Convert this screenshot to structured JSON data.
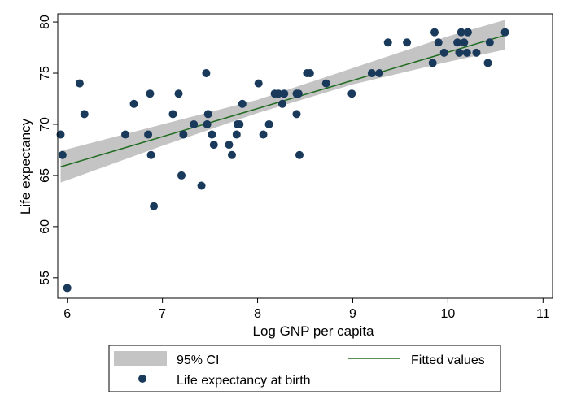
{
  "chart_data": {
    "type": "scatter",
    "title": "",
    "xlabel": "Log GNP per capita",
    "ylabel": "Life expectancy",
    "xlim": [
      5.9,
      11.1
    ],
    "ylim": [
      53,
      80.8
    ],
    "xticks": [
      6,
      7,
      8,
      9,
      10,
      11
    ],
    "yticks": [
      55,
      60,
      65,
      70,
      75,
      80
    ],
    "grid": false,
    "legend_position": "bottom",
    "series": [
      {
        "name": "Life expectancy at birth",
        "type": "scatter",
        "color": "#1a3a5c",
        "points": [
          [
            5.93,
            69
          ],
          [
            5.95,
            67
          ],
          [
            6.0,
            54
          ],
          [
            6.13,
            74
          ],
          [
            6.18,
            71
          ],
          [
            6.61,
            69
          ],
          [
            6.7,
            72
          ],
          [
            6.85,
            69
          ],
          [
            6.87,
            73
          ],
          [
            6.88,
            67
          ],
          [
            6.91,
            62
          ],
          [
            7.11,
            71
          ],
          [
            7.17,
            73
          ],
          [
            7.2,
            65
          ],
          [
            7.22,
            69
          ],
          [
            7.33,
            70
          ],
          [
            7.41,
            64
          ],
          [
            7.46,
            75
          ],
          [
            7.47,
            70
          ],
          [
            7.48,
            71
          ],
          [
            7.52,
            69
          ],
          [
            7.54,
            68
          ],
          [
            7.7,
            68
          ],
          [
            7.73,
            67
          ],
          [
            7.78,
            69
          ],
          [
            7.79,
            70
          ],
          [
            7.81,
            70
          ],
          [
            7.84,
            72
          ],
          [
            8.01,
            74
          ],
          [
            8.06,
            69
          ],
          [
            8.12,
            70
          ],
          [
            8.18,
            73
          ],
          [
            8.22,
            73
          ],
          [
            8.26,
            72
          ],
          [
            8.28,
            73
          ],
          [
            8.41,
            73
          ],
          [
            8.41,
            71
          ],
          [
            8.43,
            73
          ],
          [
            8.44,
            67
          ],
          [
            8.52,
            75
          ],
          [
            8.55,
            75
          ],
          [
            8.72,
            74
          ],
          [
            8.99,
            73
          ],
          [
            9.2,
            75
          ],
          [
            9.28,
            75
          ],
          [
            9.37,
            78
          ],
          [
            9.57,
            78
          ],
          [
            9.84,
            76
          ],
          [
            9.86,
            79
          ],
          [
            9.9,
            78
          ],
          [
            9.96,
            77
          ],
          [
            10.1,
            78
          ],
          [
            10.12,
            77
          ],
          [
            10.14,
            79
          ],
          [
            10.17,
            78
          ],
          [
            10.2,
            77
          ],
          [
            10.21,
            79
          ],
          [
            10.3,
            77
          ],
          [
            10.42,
            76
          ],
          [
            10.44,
            78
          ],
          [
            10.6,
            79
          ]
        ]
      },
      {
        "name": "Fitted values",
        "type": "line",
        "color": "#1f6b1f",
        "points": [
          [
            5.93,
            65.85
          ],
          [
            10.6,
            78.7
          ]
        ]
      },
      {
        "name": "95% CI",
        "type": "band",
        "color": "#c4c4c4",
        "x": [
          5.93,
          7.0,
          8.0,
          9.0,
          10.0,
          10.6
        ],
        "lower": [
          64.3,
          67.9,
          71.1,
          73.9,
          76.1,
          77.3
        ],
        "upper": [
          67.4,
          70.0,
          72.4,
          75.5,
          78.6,
          80.2
        ]
      }
    ]
  },
  "legend": {
    "ci_label": "95% CI",
    "fitted_label": "Fitted values",
    "points_label": "Life expectancy at birth"
  }
}
